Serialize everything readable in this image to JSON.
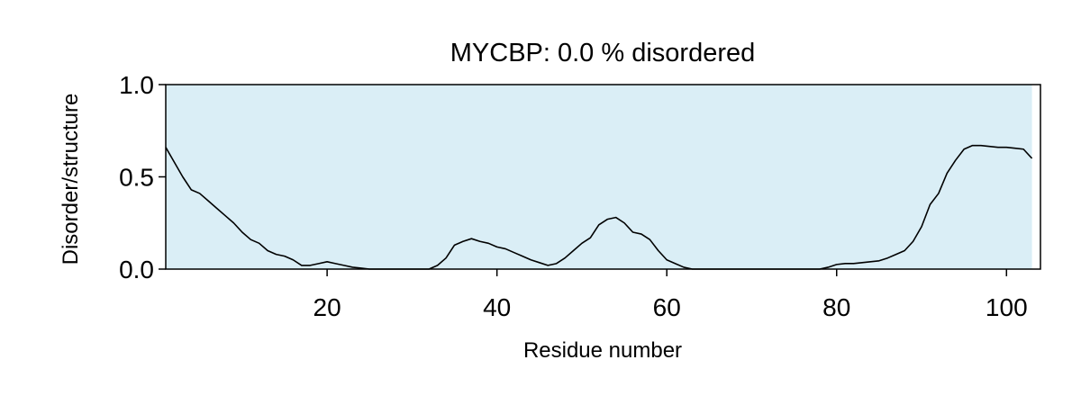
{
  "chart_data": {
    "type": "area",
    "title": "MYCBP: 0.0 % disordered",
    "xlabel": "Residue number",
    "ylabel": "Disorder/structure",
    "xlim": [
      1,
      104
    ],
    "ylim": [
      0,
      1
    ],
    "x_ticks": [
      20,
      40,
      60,
      80,
      100
    ],
    "y_ticks": [
      0.0,
      0.5,
      1.0
    ],
    "y_tick_labels": [
      "0.0",
      "0.5",
      "1.0"
    ],
    "grid": false,
    "legend": "none",
    "colors": {
      "structured_region": "#daeef6",
      "line": "#000000",
      "background": "#ffffff"
    },
    "structured_region": [
      1,
      103
    ],
    "series": [
      {
        "x": [
          1,
          2,
          3,
          4,
          5,
          6,
          7,
          8,
          9,
          10,
          11,
          12,
          13,
          14,
          15,
          16,
          17,
          18,
          19,
          20,
          21,
          22,
          23,
          24,
          25,
          26,
          27,
          28,
          29,
          30,
          31,
          32,
          33,
          34,
          35,
          36,
          37,
          38,
          39,
          40,
          41,
          42,
          43,
          44,
          45,
          46,
          47,
          48,
          49,
          50,
          51,
          52,
          53,
          54,
          55,
          56,
          57,
          58,
          59,
          60,
          61,
          62,
          63,
          64,
          65,
          66,
          67,
          68,
          69,
          70,
          71,
          72,
          73,
          74,
          75,
          76,
          77,
          78,
          79,
          80,
          81,
          82,
          83,
          84,
          85,
          86,
          87,
          88,
          89,
          90,
          91,
          92,
          93,
          94,
          95,
          96,
          97,
          98,
          99,
          100,
          101,
          102,
          103
        ],
        "values": [
          0.66,
          0.58,
          0.5,
          0.43,
          0.41,
          0.37,
          0.33,
          0.29,
          0.25,
          0.2,
          0.16,
          0.14,
          0.1,
          0.08,
          0.07,
          0.05,
          0.02,
          0.02,
          0.03,
          0.04,
          0.03,
          0.02,
          0.01,
          0.005,
          0,
          0,
          0,
          0,
          0,
          0,
          0,
          0,
          0.02,
          0.06,
          0.13,
          0.15,
          0.165,
          0.15,
          0.14,
          0.12,
          0.11,
          0.09,
          0.07,
          0.05,
          0.035,
          0.02,
          0.03,
          0.06,
          0.1,
          0.14,
          0.17,
          0.24,
          0.27,
          0.28,
          0.25,
          0.2,
          0.19,
          0.16,
          0.1,
          0.05,
          0.03,
          0.01,
          0,
          0,
          0,
          0,
          0,
          0,
          0,
          0,
          0,
          0,
          0,
          0,
          0,
          0,
          0,
          0,
          0.01,
          0.025,
          0.03,
          0.03,
          0.035,
          0.04,
          0.045,
          0.06,
          0.08,
          0.1,
          0.15,
          0.23,
          0.35,
          0.41,
          0.52,
          0.59,
          0.65,
          0.67,
          0.67,
          0.665,
          0.66,
          0.66,
          0.655,
          0.65,
          0.6
        ]
      }
    ]
  }
}
